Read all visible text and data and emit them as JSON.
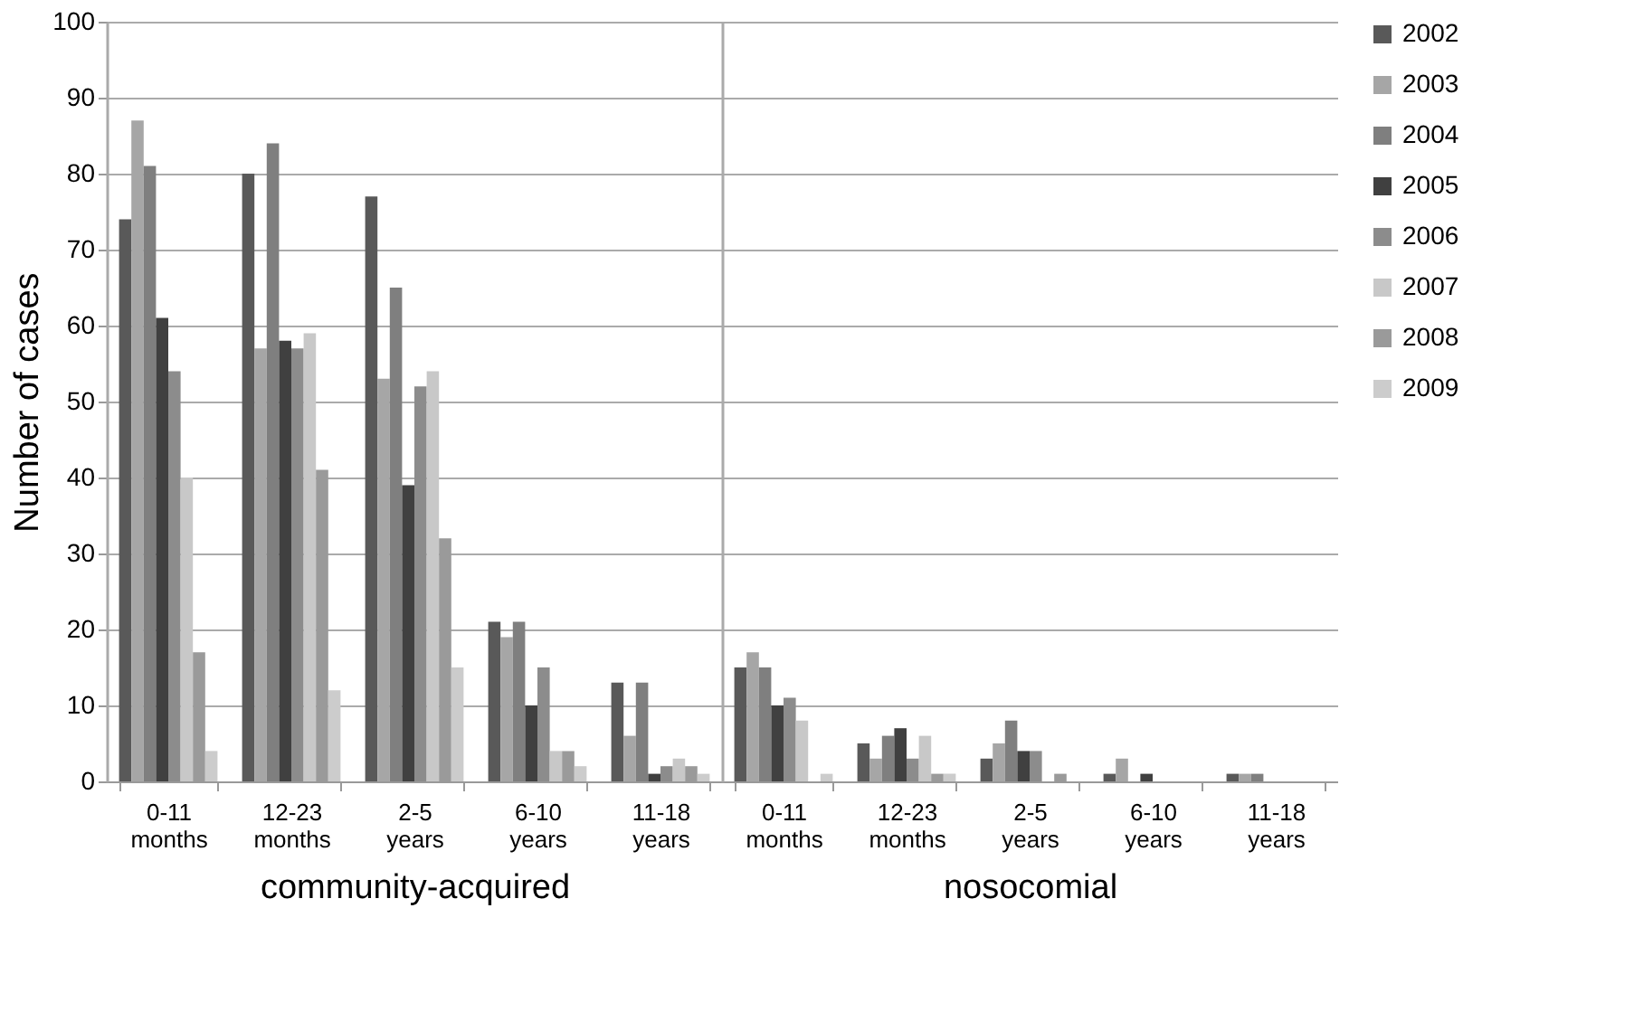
{
  "chart_data": [
    {
      "type": "bar",
      "ylabel": "Number of cases",
      "xlabel": "community-acquired",
      "categories": [
        "0-11 months",
        "12-23 months",
        "2-5 years",
        "6-10 years",
        "11-18 years"
      ],
      "series": [
        {
          "color": "#595959",
          "values": [
            74,
            80,
            77,
            21,
            13
          ]
        },
        {
          "color": "#a6a6a6",
          "values": [
            87,
            57,
            53,
            19,
            6
          ]
        },
        {
          "color": "#7f7f7f",
          "values": [
            81,
            84,
            65,
            21,
            13
          ]
        },
        {
          "color": "#404040",
          "values": [
            61,
            58,
            39,
            10,
            1
          ]
        },
        {
          "color": "#8c8c8c",
          "values": [
            54,
            57,
            52,
            15,
            2
          ]
        },
        {
          "color": "#c8c8c8",
          "values": [
            40,
            59,
            54,
            4,
            3
          ]
        },
        {
          "color": "#9a9a9a",
          "values": [
            17,
            41,
            32,
            4,
            2
          ]
        },
        {
          "color": "#cccccc",
          "values": [
            4,
            12,
            15,
            2,
            1
          ]
        }
      ],
      "ylim": [
        0,
        100
      ],
      "yticks": [
        0,
        10,
        20,
        30,
        40,
        50,
        60,
        70,
        80,
        90,
        100
      ],
      "grid": "y"
    },
    {
      "type": "bar",
      "xlabel": "nosocomial",
      "categories": [
        "0-11 months",
        "12-23 months",
        "2-5 years",
        "6-10 years",
        "11-18 years"
      ],
      "series": [
        {
          "name": "2002",
          "color": "#595959",
          "values": [
            15,
            5,
            3,
            1,
            1
          ]
        },
        {
          "name": "2003",
          "color": "#a6a6a6",
          "values": [
            17,
            3,
            5,
            3,
            1
          ]
        },
        {
          "name": "2004",
          "color": "#7f7f7f",
          "values": [
            15,
            6,
            8,
            0,
            1
          ]
        },
        {
          "name": "2005",
          "color": "#404040",
          "values": [
            10,
            7,
            4,
            1,
            0
          ]
        },
        {
          "name": "2006",
          "color": "#8c8c8c",
          "values": [
            11,
            3,
            4,
            0,
            0
          ]
        },
        {
          "name": "2007",
          "color": "#c8c8c8",
          "values": [
            8,
            6,
            0,
            0,
            0
          ]
        },
        {
          "name": "2008",
          "color": "#9a9a9a",
          "values": [
            0,
            1,
            1,
            0,
            0
          ]
        },
        {
          "name": "2009",
          "color": "#cccccc",
          "values": [
            1,
            1,
            0,
            0,
            0
          ]
        }
      ],
      "ylim": [
        0,
        100
      ],
      "yticks": [
        0,
        10,
        20,
        30,
        40,
        50,
        60,
        70,
        80,
        90,
        100
      ],
      "grid": "y",
      "legend": "right",
      "tick_labels": "x"
    }
  ]
}
